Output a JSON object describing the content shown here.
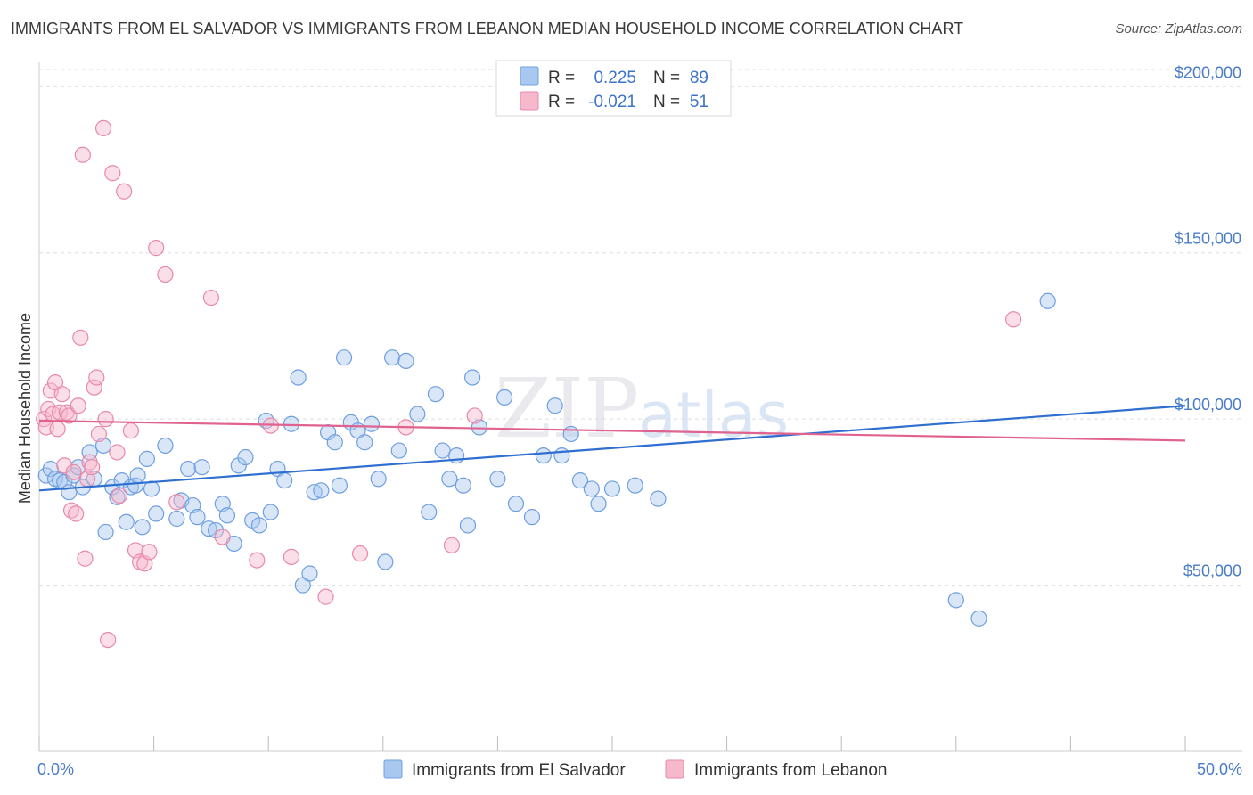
{
  "title": "IMMIGRANTS FROM EL SALVADOR VS IMMIGRANTS FROM LEBANON MEDIAN HOUSEHOLD INCOME CORRELATION CHART",
  "source": "Source: ZipAtlas.com",
  "watermark": {
    "zip": "ZIP",
    "atlas": "atlas"
  },
  "colors": {
    "blue_fill": "#a9c8f0",
    "blue_stroke": "#6f9fe0",
    "blue_line": "#2f6fcf",
    "pink_fill": "#f6b9cc",
    "pink_stroke": "#e889a8",
    "pink_line": "#e0628e",
    "axis_text": "#4a7cc9",
    "grid": "#dddddd"
  },
  "legend_top": {
    "rows": [
      {
        "r_label": "R =",
        "r_value": "0.225",
        "n_label": "N =",
        "n_value": "89"
      },
      {
        "r_label": "R =",
        "r_value": "-0.021",
        "n_label": "N =",
        "n_value": "51"
      }
    ]
  },
  "chart_data": {
    "type": "scatter",
    "title": "IMMIGRANTS FROM EL SALVADOR VS IMMIGRANTS FROM LEBANON MEDIAN HOUSEHOLD INCOME CORRELATION CHART",
    "xlabel": "",
    "ylabel": "Median Household Income",
    "xlim": [
      0,
      50
    ],
    "ylim": [
      0,
      210000
    ],
    "x_tick_labels": [
      "0.0%",
      "50.0%"
    ],
    "y_ticks": [
      50000,
      100000,
      150000,
      200000
    ],
    "y_tick_labels": [
      "$50,000",
      "$100,000",
      "$150,000",
      "$200,000"
    ],
    "series": [
      {
        "name": "Immigrants from El Salvador",
        "color": "#6f9fe0",
        "trend": {
          "x": [
            0,
            50
          ],
          "y": [
            78500,
            104000
          ]
        },
        "points": [
          [
            0.3,
            83000
          ],
          [
            0.5,
            85000
          ],
          [
            0.7,
            82000
          ],
          [
            0.9,
            81500
          ],
          [
            1.1,
            81000
          ],
          [
            1.3,
            78000
          ],
          [
            1.5,
            83000
          ],
          [
            1.7,
            85500
          ],
          [
            1.9,
            79500
          ],
          [
            2.2,
            90000
          ],
          [
            2.4,
            82000
          ],
          [
            2.8,
            92000
          ],
          [
            2.9,
            66000
          ],
          [
            3.2,
            79500
          ],
          [
            3.4,
            76500
          ],
          [
            3.6,
            81500
          ],
          [
            3.8,
            69000
          ],
          [
            4.0,
            79500
          ],
          [
            4.2,
            80000
          ],
          [
            4.3,
            83000
          ],
          [
            4.5,
            67500
          ],
          [
            4.7,
            88000
          ],
          [
            4.9,
            79000
          ],
          [
            5.1,
            71500
          ],
          [
            5.5,
            92000
          ],
          [
            6.0,
            70000
          ],
          [
            6.2,
            75500
          ],
          [
            6.5,
            85000
          ],
          [
            6.7,
            74000
          ],
          [
            6.9,
            70500
          ],
          [
            7.1,
            85500
          ],
          [
            7.4,
            67000
          ],
          [
            7.7,
            66500
          ],
          [
            8.0,
            74500
          ],
          [
            8.2,
            71000
          ],
          [
            8.5,
            62500
          ],
          [
            8.7,
            86000
          ],
          [
            9.0,
            88500
          ],
          [
            9.3,
            69500
          ],
          [
            9.6,
            68000
          ],
          [
            9.9,
            99500
          ],
          [
            10.1,
            72000
          ],
          [
            10.4,
            85000
          ],
          [
            10.7,
            81500
          ],
          [
            11.0,
            98500
          ],
          [
            11.3,
            112500
          ],
          [
            11.5,
            50000
          ],
          [
            11.8,
            53500
          ],
          [
            12.0,
            78000
          ],
          [
            12.3,
            78500
          ],
          [
            12.6,
            96000
          ],
          [
            12.9,
            93000
          ],
          [
            13.1,
            80000
          ],
          [
            13.3,
            118500
          ],
          [
            13.6,
            99000
          ],
          [
            13.9,
            96500
          ],
          [
            14.2,
            93000
          ],
          [
            14.5,
            98500
          ],
          [
            14.8,
            82000
          ],
          [
            15.1,
            57000
          ],
          [
            15.4,
            118500
          ],
          [
            15.7,
            90500
          ],
          [
            16.0,
            117500
          ],
          [
            16.5,
            101500
          ],
          [
            17.0,
            72000
          ],
          [
            17.3,
            107500
          ],
          [
            17.6,
            90500
          ],
          [
            17.9,
            82000
          ],
          [
            18.2,
            89000
          ],
          [
            18.5,
            80000
          ],
          [
            18.7,
            68000
          ],
          [
            18.9,
            112500
          ],
          [
            19.2,
            97500
          ],
          [
            20.0,
            82000
          ],
          [
            20.3,
            106500
          ],
          [
            20.8,
            74500
          ],
          [
            21.5,
            70500
          ],
          [
            22.0,
            89000
          ],
          [
            22.5,
            104000
          ],
          [
            22.8,
            89000
          ],
          [
            23.2,
            95500
          ],
          [
            23.6,
            81500
          ],
          [
            24.1,
            79000
          ],
          [
            24.4,
            74500
          ],
          [
            25.0,
            79000
          ],
          [
            26.0,
            80000
          ],
          [
            27.0,
            76000
          ],
          [
            40.0,
            45500
          ],
          [
            44.0,
            135500
          ],
          [
            41.0,
            40000
          ]
        ]
      },
      {
        "name": "Immigrants from Lebanon",
        "color": "#e889a8",
        "trend": {
          "x": [
            0,
            50
          ],
          "y": [
            99500,
            93500
          ]
        },
        "points": [
          [
            0.2,
            100000
          ],
          [
            0.3,
            97500
          ],
          [
            0.4,
            103000
          ],
          [
            0.5,
            108500
          ],
          [
            0.6,
            101500
          ],
          [
            0.7,
            111000
          ],
          [
            0.8,
            97000
          ],
          [
            0.9,
            102000
          ],
          [
            1.0,
            107500
          ],
          [
            1.1,
            86000
          ],
          [
            1.2,
            102000
          ],
          [
            1.3,
            101000
          ],
          [
            1.4,
            72500
          ],
          [
            1.5,
            84000
          ],
          [
            1.6,
            71500
          ],
          [
            1.7,
            104000
          ],
          [
            1.8,
            124500
          ],
          [
            1.9,
            179500
          ],
          [
            2.0,
            58000
          ],
          [
            2.1,
            82000
          ],
          [
            2.2,
            87000
          ],
          [
            2.3,
            85500
          ],
          [
            2.4,
            109500
          ],
          [
            2.5,
            112500
          ],
          [
            2.6,
            95500
          ],
          [
            2.8,
            187500
          ],
          [
            2.9,
            100000
          ],
          [
            3.0,
            33500
          ],
          [
            3.2,
            174000
          ],
          [
            3.4,
            90000
          ],
          [
            3.5,
            77000
          ],
          [
            3.7,
            168500
          ],
          [
            4.0,
            96500
          ],
          [
            4.2,
            60500
          ],
          [
            4.4,
            57000
          ],
          [
            4.6,
            56500
          ],
          [
            4.8,
            60000
          ],
          [
            5.1,
            151500
          ],
          [
            5.5,
            143500
          ],
          [
            6.0,
            75000
          ],
          [
            7.5,
            136500
          ],
          [
            8.0,
            64500
          ],
          [
            9.5,
            57500
          ],
          [
            10.1,
            98000
          ],
          [
            11.0,
            58500
          ],
          [
            12.5,
            46500
          ],
          [
            14.0,
            59500
          ],
          [
            16.0,
            97500
          ],
          [
            18.0,
            62000
          ],
          [
            19.0,
            101000
          ],
          [
            42.5,
            130000
          ]
        ]
      }
    ],
    "legend": [
      "Immigrants from El Salvador",
      "Immigrants from Lebanon"
    ]
  }
}
